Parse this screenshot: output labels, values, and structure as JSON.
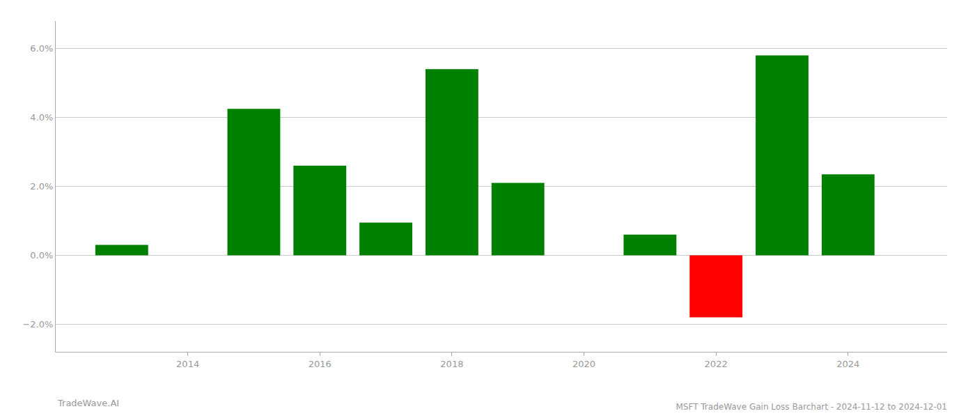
{
  "chart_data": {
    "type": "bar",
    "title": "MSFT TradeWave Gain Loss Barchart - 2024-11-12 to 2024-12-01",
    "annotations": [
      "TradeWave.AI"
    ],
    "x": [
      2013,
      2015,
      2016,
      2017,
      2018,
      2019,
      2021,
      2022,
      2023,
      2024
    ],
    "values": [
      0.003,
      0.0425,
      0.026,
      0.0095,
      0.054,
      0.021,
      0.006,
      -0.018,
      0.058,
      0.0235
    ],
    "colors": [
      "#008000",
      "#008000",
      "#008000",
      "#008000",
      "#008000",
      "#008000",
      "#008000",
      "#ff0000",
      "#008000",
      "#008000"
    ],
    "xlim": [
      2012.0,
      2025.5
    ],
    "xticks": [
      2014,
      2016,
      2018,
      2020,
      2022,
      2024
    ],
    "ylim": [
      -0.028,
      0.068
    ],
    "yticks": [
      {
        "value": -0.02,
        "label": "−2.0%"
      },
      {
        "value": 0.0,
        "label": "0.0%"
      },
      {
        "value": 0.02,
        "label": "2.0%"
      },
      {
        "value": 0.04,
        "label": "4.0%"
      },
      {
        "value": 0.06,
        "label": "6.0%"
      }
    ],
    "grid": true
  }
}
